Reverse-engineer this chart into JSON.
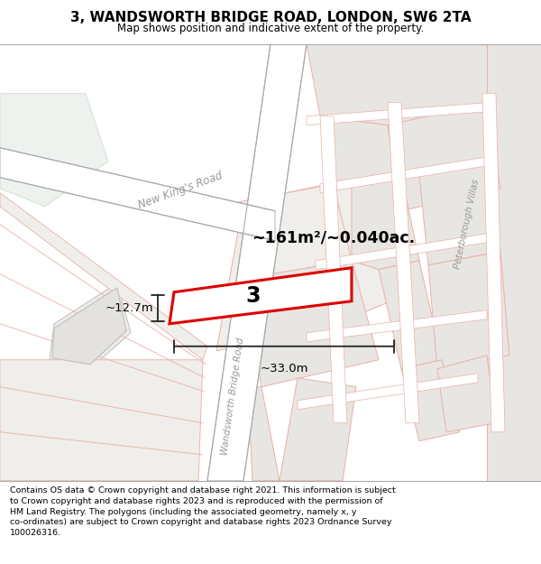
{
  "title": "3, WANDSWORTH BRIDGE ROAD, LONDON, SW6 2TA",
  "subtitle": "Map shows position and indicative extent of the property.",
  "footer": "Contains OS data © Crown copyright and database right 2021. This information is subject to Crown copyright and database rights 2023 and is reproduced with the permission of HM Land Registry. The polygons (including the associated geometry, namely x, y co-ordinates) are subject to Crown copyright and database rights 2023 Ordnance Survey 100026316.",
  "map_bg": "#f7f7f5",
  "block_fill": "#e8e6e2",
  "block_edge": "#e8b0a8",
  "road_fill": "#ffffff",
  "road_edge": "#e8b0a8",
  "greenish": "#eef2ee",
  "plot_color": "#dd0000",
  "dim_color": "#222222",
  "area_label": "~161m²/~0.040ac.",
  "plot_number": "3",
  "dim_width": "~33.0m",
  "dim_height": "~12.7m",
  "road_label_1": "New King's Road",
  "road_label_2": "Wandsworth Bridge Road",
  "road_label_3": "Peterborough Villas"
}
